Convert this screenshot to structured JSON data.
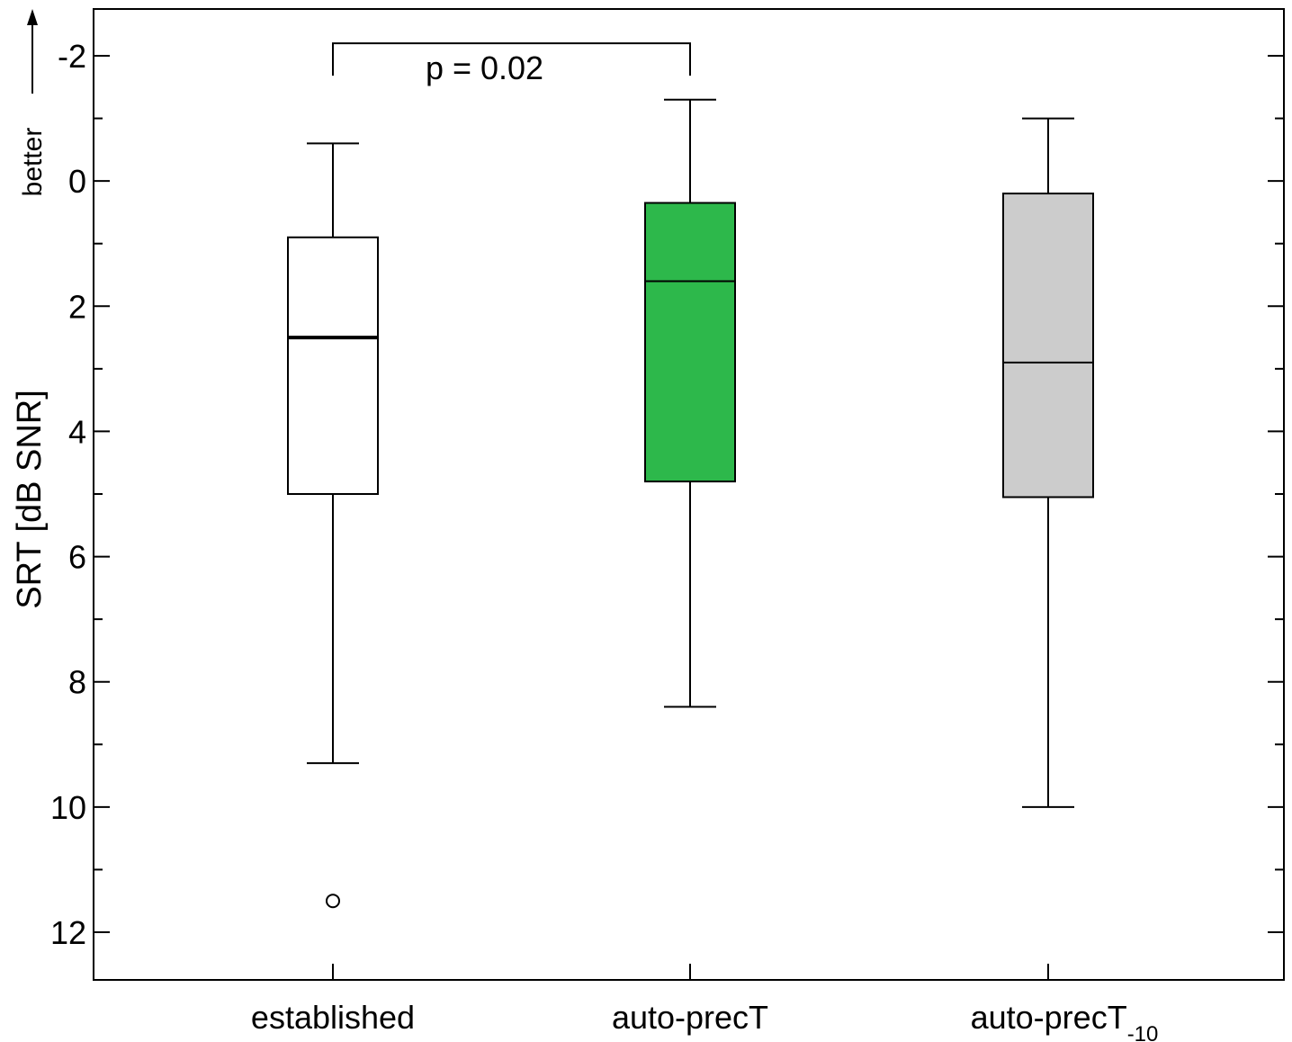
{
  "chart_data": {
    "type": "box",
    "title": "",
    "xlabel": "",
    "ylabel": "SRT [dB SNR]",
    "y_inverted": true,
    "ylim": [
      -2.8,
      12.8
    ],
    "y_ticks": [
      -2,
      0,
      2,
      4,
      6,
      8,
      10,
      12
    ],
    "y_tick_labels": [
      "-2",
      "0",
      "2",
      "4",
      "6",
      "8",
      "10",
      "12"
    ],
    "y_minor_step": 1,
    "direction_label": "better",
    "grid": false,
    "legend": "none",
    "categories": [
      {
        "label": "established",
        "sub": ""
      },
      {
        "label": "auto-precT",
        "sub": ""
      },
      {
        "label": "auto-precT",
        "sub": "-10"
      }
    ],
    "boxes": [
      {
        "whisker_low": -0.6,
        "q1": 0.9,
        "median": 2.5,
        "q3": 5.0,
        "whisker_high": 9.3,
        "outliers": [
          11.5
        ],
        "fill": "#ffffff"
      },
      {
        "whisker_low": -1.3,
        "q1": 0.35,
        "median": 1.6,
        "q3": 4.8,
        "whisker_high": 8.4,
        "outliers": [],
        "fill": "#2db84b"
      },
      {
        "whisker_low": -1.0,
        "q1": 0.2,
        "median": 2.9,
        "q3": 5.05,
        "whisker_high": 10.0,
        "outliers": [],
        "fill": "#cccccc"
      }
    ],
    "annotations": [
      {
        "type": "bracket",
        "from": 0,
        "to": 1,
        "y": -2.2,
        "text": "p = 0.02"
      }
    ]
  }
}
